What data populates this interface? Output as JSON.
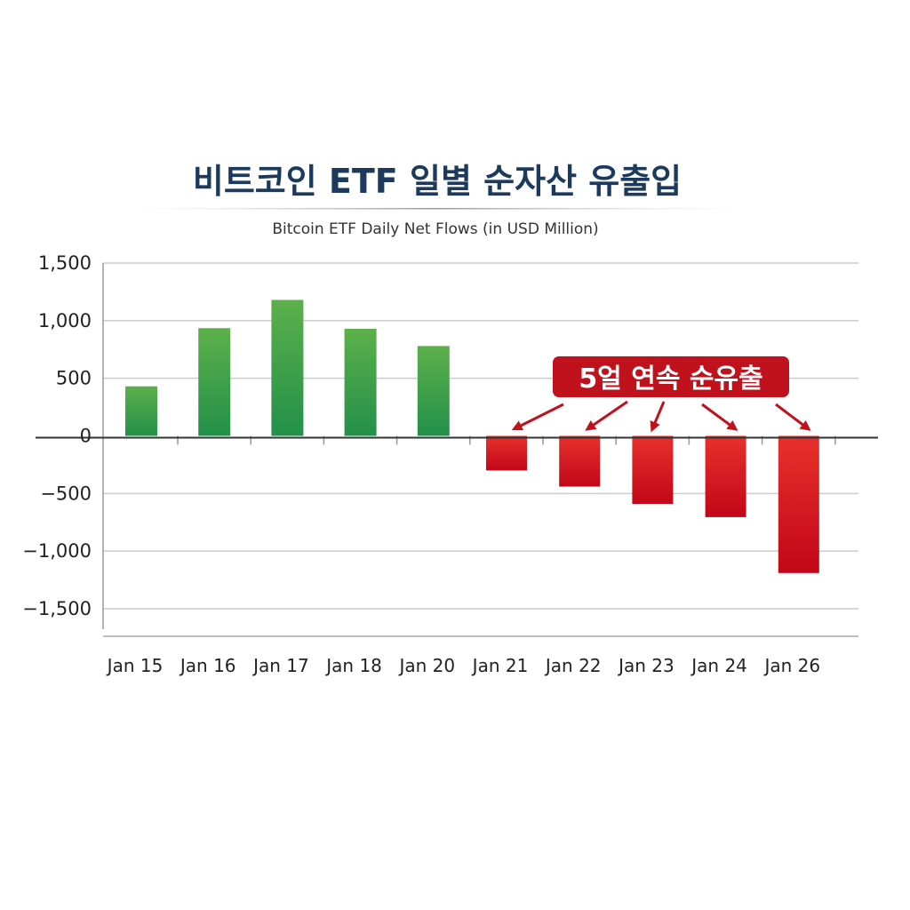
{
  "chart_data": {
    "type": "bar",
    "title": "비트코인 ETF 일별 순자산 유출입",
    "subtitle": "Bitcoin ETF Daily Net Flows (in USD Million)",
    "xlabel": "",
    "ylabel": "",
    "categories": [
      "Jan 15",
      "Jan 16",
      "Jan 17",
      "Jan 18",
      "Jan 20",
      "Jan 21",
      "Jan 22",
      "Jan 23",
      "Jan 24",
      "Jan 26"
    ],
    "values": [
      430,
      935,
      1180,
      930,
      780,
      -300,
      -440,
      -590,
      -705,
      -1190
    ],
    "ylim": [
      -1500,
      1500
    ],
    "yticks": [
      1500,
      1000,
      500,
      0,
      -500,
      -1000,
      -1500
    ],
    "ytick_labels": [
      "1,500",
      "1,000",
      "500",
      "0",
      "−500",
      "−1,000",
      "−1,500"
    ],
    "grid": true,
    "legend": "none",
    "colors": {
      "positive": "#2e9a45",
      "negative": "#d9101c",
      "title": "#1c3a5c",
      "annotation_bg": "#c0121c"
    },
    "annotation": {
      "text": "5얼 연속 순유출",
      "targets": [
        "Jan 21",
        "Jan 22",
        "Jan 23",
        "Jan 24",
        "Jan 26"
      ]
    }
  }
}
